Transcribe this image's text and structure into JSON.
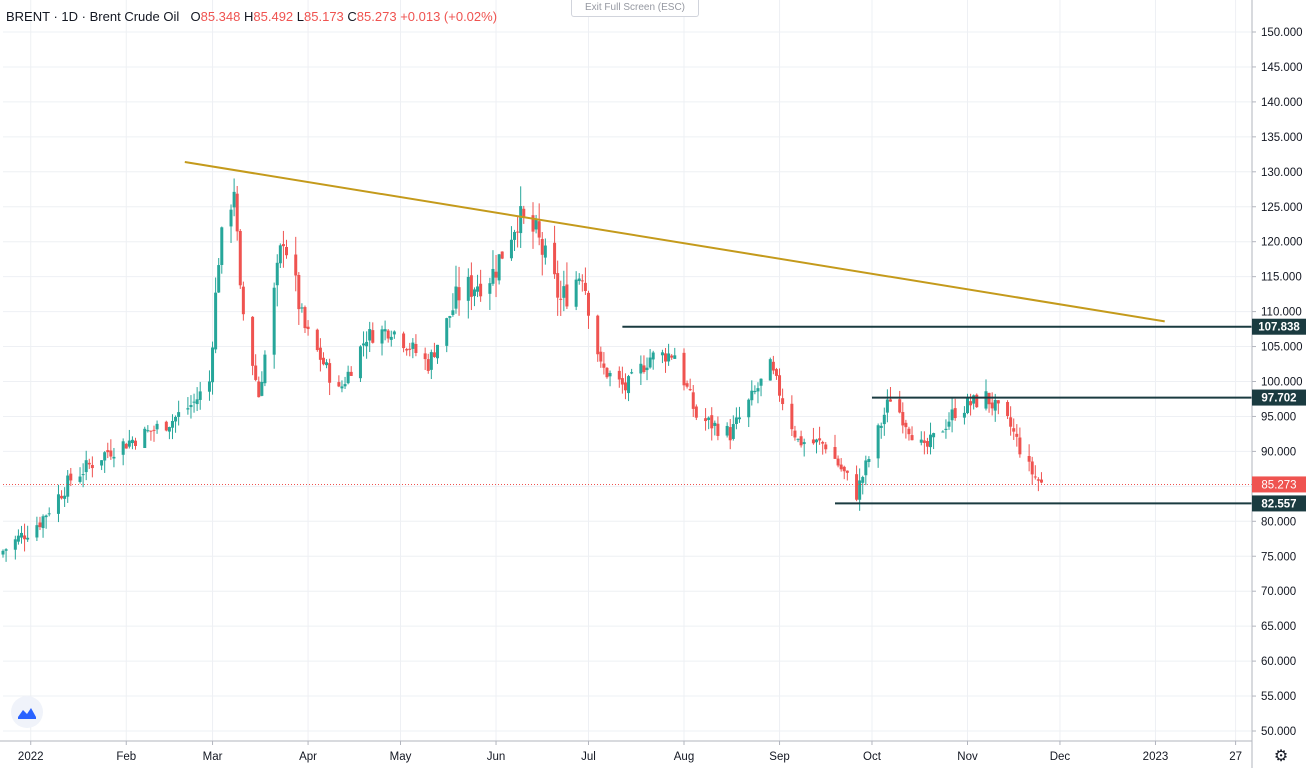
{
  "legend": {
    "symbol": "BRENT",
    "sep1": "·",
    "interval": "1D",
    "sep2": "·",
    "name": "Brent Crude Oil",
    "o_label": "O",
    "o": "85.348",
    "h_label": "H",
    "h": "85.492",
    "l_label": "L",
    "l": "85.173",
    "c_label": "C",
    "c": "85.273",
    "change": "+0.013 (+0.02%)"
  },
  "exit_fullscreen": "Exit Full Screen (ESC)",
  "settings_icon": "gear-icon",
  "logo_icon": "tradingview-logo-icon",
  "colors": {
    "up": "#26a69a",
    "down": "#ef5350",
    "trendline": "#c49a1b",
    "hline": "#1a3b40",
    "grid": "#eef0f4",
    "axis_text": "#131722",
    "price_line": "#ef5350"
  },
  "chart_data": {
    "type": "candlestick",
    "title": "BRENT · 1D · Brent Crude Oil",
    "ylim": [
      48,
      153
    ],
    "y_ticks": [
      50,
      55,
      60,
      65,
      70,
      75,
      80,
      85,
      90,
      95,
      100,
      105,
      110,
      115,
      120,
      125,
      130,
      135,
      140,
      145,
      150
    ],
    "y_tick_labels": [
      "50.000",
      "55.000",
      "60.000",
      "65.000",
      "70.000",
      "75.000",
      "80.000",
      "85.000",
      "90.000",
      "95.000",
      "100.000",
      "105.000",
      "110.000",
      "115.000",
      "120.000",
      "125.000",
      "130.000",
      "135.000",
      "140.000",
      "145.000",
      "150.000"
    ],
    "x_range": [
      "2021-12-23",
      "2023-02-01"
    ],
    "x_ticks": [
      {
        "date": "2022-01-01",
        "label": "2022"
      },
      {
        "date": "2022-02-01",
        "label": "Feb"
      },
      {
        "date": "2022-03-01",
        "label": "Mar"
      },
      {
        "date": "2022-04-01",
        "label": "Apr"
      },
      {
        "date": "2022-05-01",
        "label": "May"
      },
      {
        "date": "2022-06-01",
        "label": "Jun"
      },
      {
        "date": "2022-07-01",
        "label": "Jul"
      },
      {
        "date": "2022-08-01",
        "label": "Aug"
      },
      {
        "date": "2022-09-01",
        "label": "Sep"
      },
      {
        "date": "2022-10-01",
        "label": "Oct"
      },
      {
        "date": "2022-11-01",
        "label": "Nov"
      },
      {
        "date": "2022-12-01",
        "label": "Dec"
      },
      {
        "date": "2023-01-01",
        "label": "2023"
      },
      {
        "date": "2023-01-27",
        "label": "27"
      }
    ],
    "closes": [
      {
        "date": "2021-12-23",
        "close": 75.8
      },
      {
        "date": "2022-01-04",
        "close": 80.0
      },
      {
        "date": "2022-01-14",
        "close": 86.0
      },
      {
        "date": "2022-01-26",
        "close": 90.0
      },
      {
        "date": "2022-02-07",
        "close": 92.5
      },
      {
        "date": "2022-02-16",
        "close": 94.5
      },
      {
        "date": "2022-02-23",
        "close": 97.0
      },
      {
        "date": "2022-02-28",
        "close": 100.0
      },
      {
        "date": "2022-03-03",
        "close": 118.0
      },
      {
        "date": "2022-03-08",
        "close": 128.0
      },
      {
        "date": "2022-03-10",
        "close": 112.0
      },
      {
        "date": "2022-03-16",
        "close": 98.0
      },
      {
        "date": "2022-03-24",
        "close": 121.0
      },
      {
        "date": "2022-03-31",
        "close": 107.5
      },
      {
        "date": "2022-04-11",
        "close": 98.5
      },
      {
        "date": "2022-04-20",
        "close": 106.5
      },
      {
        "date": "2022-04-28",
        "close": 107.5
      },
      {
        "date": "2022-05-10",
        "close": 102.5
      },
      {
        "date": "2022-05-20",
        "close": 112.5
      },
      {
        "date": "2022-05-31",
        "close": 115.5
      },
      {
        "date": "2022-06-08",
        "close": 123.5
      },
      {
        "date": "2022-06-14",
        "close": 121.0
      },
      {
        "date": "2022-06-22",
        "close": 111.5
      },
      {
        "date": "2022-06-29",
        "close": 116.0
      },
      {
        "date": "2022-07-05",
        "close": 102.0
      },
      {
        "date": "2022-07-13",
        "close": 99.0
      },
      {
        "date": "2022-07-21",
        "close": 103.5
      },
      {
        "date": "2022-07-29",
        "close": 104.0
      },
      {
        "date": "2022-08-05",
        "close": 95.0
      },
      {
        "date": "2022-08-16",
        "close": 92.5
      },
      {
        "date": "2022-08-29",
        "close": 102.0
      },
      {
        "date": "2022-09-07",
        "close": 91.5
      },
      {
        "date": "2022-09-16",
        "close": 91.0
      },
      {
        "date": "2022-09-26",
        "close": 84.0
      },
      {
        "date": "2022-10-07",
        "close": 97.8
      },
      {
        "date": "2022-10-18",
        "close": 90.0
      },
      {
        "date": "2022-10-28",
        "close": 95.8
      },
      {
        "date": "2022-11-07",
        "close": 97.8
      },
      {
        "date": "2022-11-15",
        "close": 93.5
      },
      {
        "date": "2022-11-21",
        "close": 87.5
      },
      {
        "date": "2022-11-25",
        "close": 85.3
      }
    ],
    "trendline": {
      "start": {
        "date": "2022-02-20",
        "value": 131.4
      },
      "end": {
        "date": "2023-01-04",
        "value": 108.6
      }
    },
    "horizontal_levels": [
      {
        "name": "resistance-1",
        "value": 107.838,
        "label": "107.838",
        "start_date": "2022-07-12"
      },
      {
        "name": "resistance-2",
        "value": 97.702,
        "label": "97.702",
        "start_date": "2022-10-01"
      },
      {
        "name": "support",
        "value": 82.557,
        "label": "82.557",
        "start_date": "2022-09-19"
      }
    ],
    "last_price": {
      "value": 85.273,
      "label": "85.273"
    }
  }
}
